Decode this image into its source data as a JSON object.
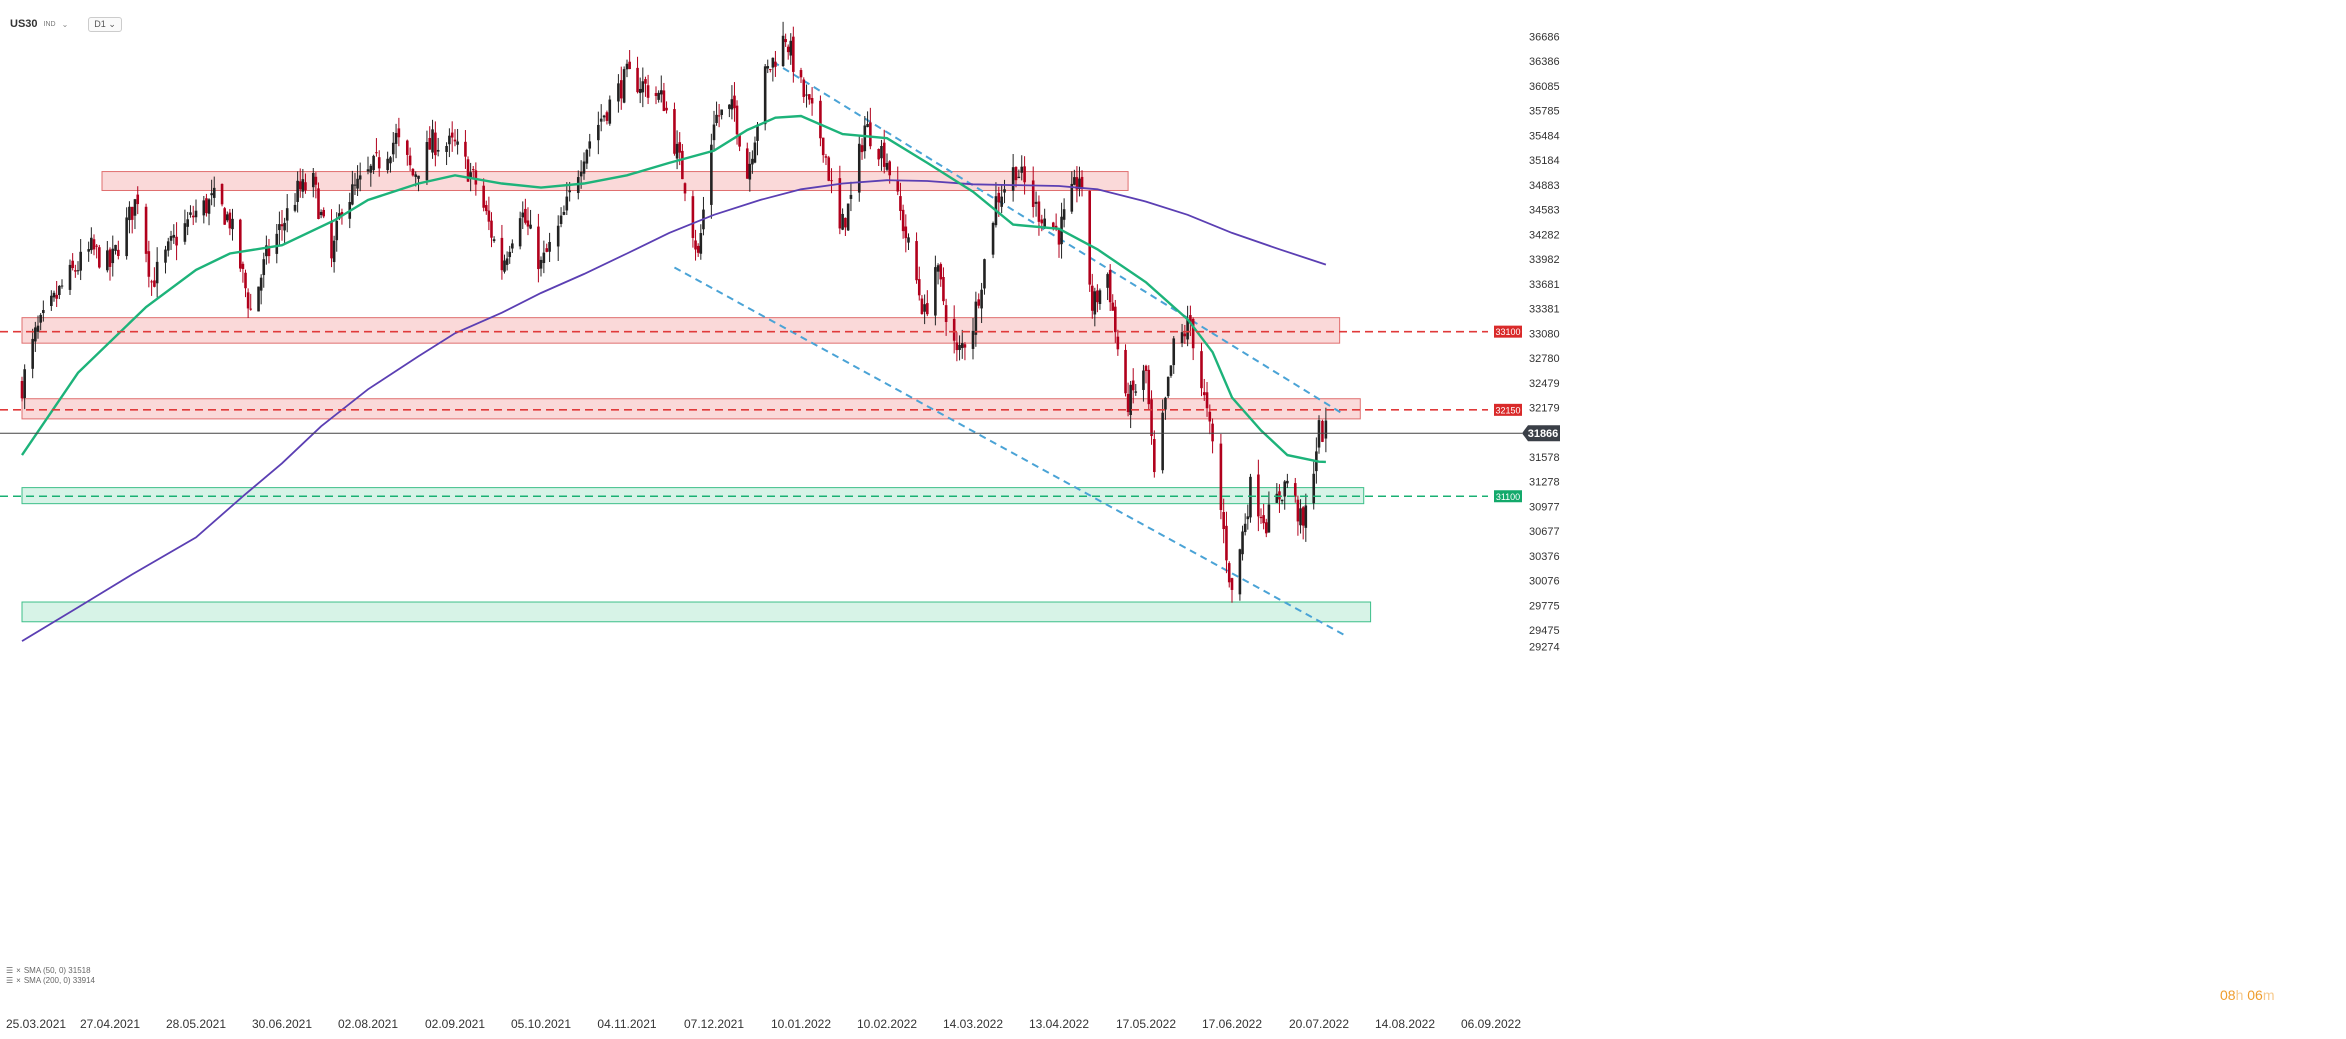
{
  "header": {
    "symbol": "US30",
    "instrument_type": "IND",
    "timeframe": "D1"
  },
  "legend": [
    {
      "label": "SMA (50, 0) 31518",
      "color": "#1db37a"
    },
    {
      "label": "SMA (200, 0) 33914",
      "color": "#5b3fb3"
    }
  ],
  "timer": {
    "hours": "08",
    "h_unit": "h",
    "minutes": "06",
    "m_unit": "m"
  },
  "colors": {
    "up": "#222222",
    "down": "#b1001c",
    "resistance_fill": "#f8cccc",
    "resistance_stroke": "#e06f6f",
    "support_fill": "#c9efdf",
    "support_stroke": "#3dbf8a",
    "channel": "#4aa3d6",
    "sma50": "#1db37a",
    "sma200": "#5b3fb3"
  },
  "chart_data": {
    "type": "candlestick",
    "instrument": "US30",
    "timeframe": "D1",
    "ylim": [
      29274,
      36800
    ],
    "y_ticks": [
      36686,
      36386,
      36085,
      35785,
      35484,
      35184,
      34883,
      34583,
      34282,
      33982,
      33681,
      33381,
      33080,
      32780,
      32479,
      32179,
      31578,
      31278,
      30977,
      30677,
      30376,
      30076,
      29775,
      29475,
      29274
    ],
    "x_ticks": [
      "25.03.2021",
      "27.04.2021",
      "28.05.2021",
      "30.06.2021",
      "02.08.2021",
      "02.09.2021",
      "05.10.2021",
      "04.11.2021",
      "07.12.2021",
      "10.01.2022",
      "10.02.2022",
      "14.03.2022",
      "13.04.2022",
      "17.05.2022",
      "17.06.2022",
      "20.07.2022",
      "14.08.2022",
      "06.09.2022"
    ],
    "last_price": {
      "value": 31866,
      "label": "31866"
    },
    "levels": [
      {
        "value": 33100,
        "label": "33100",
        "kind": "resistance"
      },
      {
        "value": 32150,
        "label": "32150",
        "kind": "resistance"
      },
      {
        "value": 31100,
        "label": "31100",
        "kind": "support"
      }
    ],
    "zones": [
      {
        "kind": "resistance",
        "low": 34815,
        "high": 35045,
        "from": "24.04.2021",
        "to": "10.05.2022"
      },
      {
        "kind": "resistance",
        "low": 32960,
        "high": 33270,
        "from": "25.03.2021",
        "to": "26.07.2022"
      },
      {
        "kind": "resistance",
        "low": 32040,
        "high": 32285,
        "from": "25.03.2021",
        "to": "01.08.2022"
      },
      {
        "kind": "support",
        "low": 31010,
        "high": 31205,
        "from": "25.03.2021",
        "to": "02.08.2022"
      },
      {
        "kind": "support",
        "low": 29575,
        "high": 29815,
        "from": "25.03.2021",
        "to": "04.08.2022"
      }
    ],
    "channel_lines": [
      {
        "from": {
          "date": "30.12.2021",
          "value": 36380
        },
        "to": {
          "date": "27.07.2022",
          "value": 32100
        }
      },
      {
        "from": {
          "date": "22.11.2021",
          "value": 33880
        },
        "to": {
          "date": "28.07.2022",
          "value": 29400
        }
      }
    ],
    "sma50": [
      {
        "date": "25.03.2021",
        "value": 31600
      },
      {
        "date": "15.04.2021",
        "value": 32600
      },
      {
        "date": "10.05.2021",
        "value": 33400
      },
      {
        "date": "28.05.2021",
        "value": 33850
      },
      {
        "date": "10.06.2021",
        "value": 34050
      },
      {
        "date": "30.06.2021",
        "value": 34150
      },
      {
        "date": "20.07.2021",
        "value": 34450
      },
      {
        "date": "02.08.2021",
        "value": 34700
      },
      {
        "date": "20.08.2021",
        "value": 34900
      },
      {
        "date": "02.09.2021",
        "value": 35000
      },
      {
        "date": "20.09.2021",
        "value": 34900
      },
      {
        "date": "05.10.2021",
        "value": 34850
      },
      {
        "date": "20.10.2021",
        "value": 34900
      },
      {
        "date": "04.11.2021",
        "value": 35000
      },
      {
        "date": "20.11.2021",
        "value": 35150
      },
      {
        "date": "07.12.2021",
        "value": 35300
      },
      {
        "date": "20.12.2021",
        "value": 35550
      },
      {
        "date": "31.12.2021",
        "value": 35700
      },
      {
        "date": "10.01.2022",
        "value": 35720
      },
      {
        "date": "25.01.2022",
        "value": 35500
      },
      {
        "date": "10.02.2022",
        "value": 35450
      },
      {
        "date": "25.02.2022",
        "value": 35150
      },
      {
        "date": "14.03.2022",
        "value": 34800
      },
      {
        "date": "28.03.2022",
        "value": 34400
      },
      {
        "date": "13.04.2022",
        "value": 34350
      },
      {
        "date": "28.04.2022",
        "value": 34100
      },
      {
        "date": "17.05.2022",
        "value": 33700
      },
      {
        "date": "01.06.2022",
        "value": 33250
      },
      {
        "date": "10.06.2022",
        "value": 32850
      },
      {
        "date": "17.06.2022",
        "value": 32300
      },
      {
        "date": "28.06.2022",
        "value": 31900
      },
      {
        "date": "08.07.2022",
        "value": 31600
      },
      {
        "date": "20.07.2022",
        "value": 31520
      },
      {
        "date": "22.07.2022",
        "value": 31518
      }
    ],
    "sma200": [
      {
        "date": "25.03.2021",
        "value": 29340
      },
      {
        "date": "15.04.2021",
        "value": 29750
      },
      {
        "date": "05.05.2021",
        "value": 30150
      },
      {
        "date": "28.05.2021",
        "value": 30600
      },
      {
        "date": "15.06.2021",
        "value": 31100
      },
      {
        "date": "30.06.2021",
        "value": 31500
      },
      {
        "date": "15.07.2021",
        "value": 31950
      },
      {
        "date": "02.08.2021",
        "value": 32400
      },
      {
        "date": "20.08.2021",
        "value": 32800
      },
      {
        "date": "02.09.2021",
        "value": 33080
      },
      {
        "date": "20.09.2021",
        "value": 33330
      },
      {
        "date": "05.10.2021",
        "value": 33570
      },
      {
        "date": "20.10.2021",
        "value": 33800
      },
      {
        "date": "04.11.2021",
        "value": 34050
      },
      {
        "date": "20.11.2021",
        "value": 34300
      },
      {
        "date": "07.12.2021",
        "value": 34520
      },
      {
        "date": "25.12.2021",
        "value": 34700
      },
      {
        "date": "10.01.2022",
        "value": 34830
      },
      {
        "date": "25.01.2022",
        "value": 34900
      },
      {
        "date": "10.02.2022",
        "value": 34940
      },
      {
        "date": "25.02.2022",
        "value": 34930
      },
      {
        "date": "14.03.2022",
        "value": 34890
      },
      {
        "date": "28.03.2022",
        "value": 34880
      },
      {
        "date": "13.04.2022",
        "value": 34870
      },
      {
        "date": "28.04.2022",
        "value": 34830
      },
      {
        "date": "17.05.2022",
        "value": 34680
      },
      {
        "date": "01.06.2022",
        "value": 34520
      },
      {
        "date": "17.06.2022",
        "value": 34300
      },
      {
        "date": "05.07.2022",
        "value": 34100
      },
      {
        "date": "22.07.2022",
        "value": 33914
      }
    ],
    "close_path": [
      {
        "date": "25.03.2021",
        "value": 32450
      },
      {
        "date": "30.03.2021",
        "value": 33050
      },
      {
        "date": "10.04.2021",
        "value": 33700
      },
      {
        "date": "20.04.2021",
        "value": 34100
      },
      {
        "date": "27.04.2021",
        "value": 33900
      },
      {
        "date": "07.05.2021",
        "value": 34750
      },
      {
        "date": "12.05.2021",
        "value": 33700
      },
      {
        "date": "20.05.2021",
        "value": 34200
      },
      {
        "date": "28.05.2021",
        "value": 34550
      },
      {
        "date": "04.06.2021",
        "value": 34700
      },
      {
        "date": "10.06.2021",
        "value": 34450
      },
      {
        "date": "18.06.2021",
        "value": 33350
      },
      {
        "date": "24.06.2021",
        "value": 34000
      },
      {
        "date": "30.06.2021",
        "value": 34400
      },
      {
        "date": "06.07.2021",
        "value": 34800
      },
      {
        "date": "12.07.2021",
        "value": 34900
      },
      {
        "date": "19.07.2021",
        "value": 33950
      },
      {
        "date": "23.07.2021",
        "value": 34650
      },
      {
        "date": "02.08.2021",
        "value": 35000
      },
      {
        "date": "12.08.2021",
        "value": 35450
      },
      {
        "date": "18.08.2021",
        "value": 35000
      },
      {
        "date": "25.08.2021",
        "value": 35400
      },
      {
        "date": "02.09.2021",
        "value": 35350
      },
      {
        "date": "10.09.2021",
        "value": 34900
      },
      {
        "date": "20.09.2021",
        "value": 33900
      },
      {
        "date": "27.09.2021",
        "value": 34600
      },
      {
        "date": "05.10.2021",
        "value": 33900
      },
      {
        "date": "12.10.2021",
        "value": 34400
      },
      {
        "date": "20.10.2021",
        "value": 35300
      },
      {
        "date": "26.10.2021",
        "value": 35700
      },
      {
        "date": "04.11.2021",
        "value": 36200
      },
      {
        "date": "10.11.2021",
        "value": 36100
      },
      {
        "date": "18.11.2021",
        "value": 35900
      },
      {
        "date": "26.11.2021",
        "value": 34900
      },
      {
        "date": "01.12.2021",
        "value": 34000
      },
      {
        "date": "07.12.2021",
        "value": 35700
      },
      {
        "date": "15.12.2021",
        "value": 35800
      },
      {
        "date": "20.12.2021",
        "value": 35000
      },
      {
        "date": "27.12.2021",
        "value": 36200
      },
      {
        "date": "04.01.2022",
        "value": 36700
      },
      {
        "date": "10.01.2022",
        "value": 36050
      },
      {
        "date": "18.01.2022",
        "value": 35400
      },
      {
        "date": "24.01.2022",
        "value": 34300
      },
      {
        "date": "28.01.2022",
        "value": 34700
      },
      {
        "date": "02.02.2022",
        "value": 35600
      },
      {
        "date": "10.02.2022",
        "value": 35200
      },
      {
        "date": "16.02.2022",
        "value": 34400
      },
      {
        "date": "24.02.2022",
        "value": 33300
      },
      {
        "date": "28.02.2022",
        "value": 33900
      },
      {
        "date": "08.03.2022",
        "value": 32800
      },
      {
        "date": "14.03.2022",
        "value": 33200
      },
      {
        "date": "22.03.2022",
        "value": 34700
      },
      {
        "date": "29.03.2022",
        "value": 35100
      },
      {
        "date": "05.04.2022",
        "value": 34600
      },
      {
        "date": "13.04.2022",
        "value": 34300
      },
      {
        "date": "21.04.2022",
        "value": 35000
      },
      {
        "date": "26.04.2022",
        "value": 33400
      },
      {
        "date": "02.05.2022",
        "value": 33800
      },
      {
        "date": "09.05.2022",
        "value": 32200
      },
      {
        "date": "17.05.2022",
        "value": 32600
      },
      {
        "date": "20.05.2022",
        "value": 31300
      },
      {
        "date": "27.05.2022",
        "value": 32900
      },
      {
        "date": "02.06.2022",
        "value": 33200
      },
      {
        "date": "10.06.2022",
        "value": 31700
      },
      {
        "date": "17.06.2022",
        "value": 29900
      },
      {
        "date": "24.06.2022",
        "value": 31200
      },
      {
        "date": "30.06.2022",
        "value": 30800
      },
      {
        "date": "08.07.2022",
        "value": 31300
      },
      {
        "date": "14.07.2022",
        "value": 30700
      },
      {
        "date": "20.07.2022",
        "value": 31900
      },
      {
        "date": "22.07.2022",
        "value": 31866
      }
    ]
  }
}
